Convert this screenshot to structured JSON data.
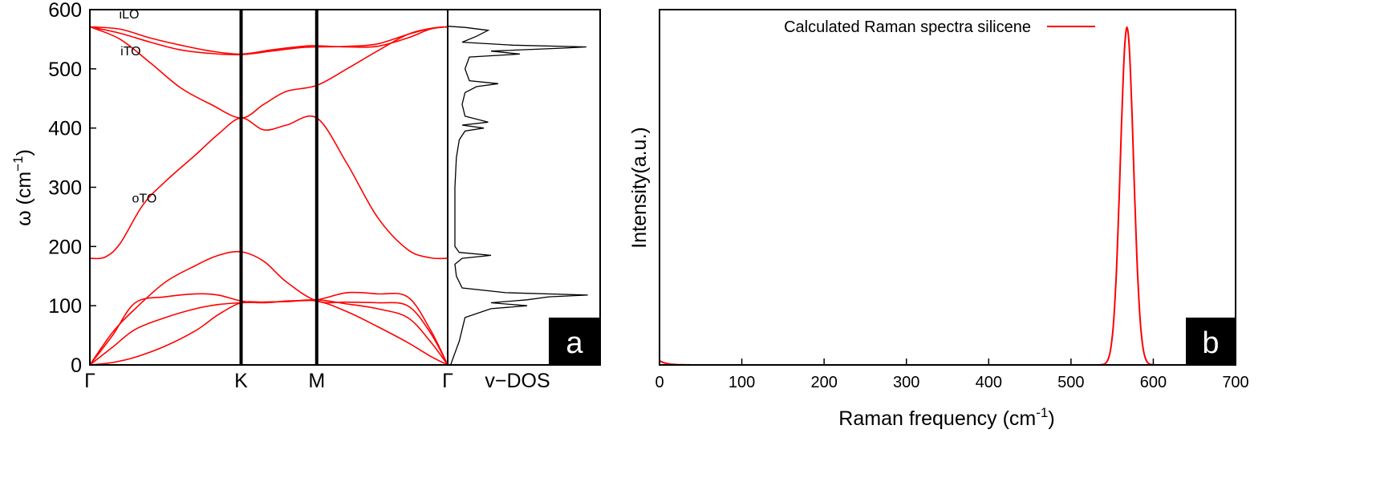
{
  "chart_data": [
    {
      "type": "line",
      "panel_label": "a",
      "ylabel_base": "ω (cm",
      "ylabel_sup": "−1",
      "ylabel_close": ")",
      "ylim": [
        0,
        600
      ],
      "yticks": [
        "0",
        "100",
        "200",
        "300",
        "400",
        "500",
        "600"
      ],
      "path_ticks": [
        {
          "label": "Γ",
          "k": 0
        },
        {
          "label": "K",
          "k": 1.0
        },
        {
          "label": "M",
          "k": 1.5
        },
        {
          "label": "Γ",
          "k": 2.366
        }
      ],
      "dos_label": "v−DOS",
      "annotations": [
        {
          "text": "iLO",
          "k": 0.26,
          "w": 585
        },
        {
          "text": "iTO",
          "k": 0.27,
          "w": 523
        },
        {
          "text": "oTO",
          "k": 0.36,
          "w": 274
        }
      ],
      "line_color": "#ff0000",
      "branches": [
        {
          "name": "",
          "k": [
            0,
            0.15,
            0.3,
            0.5,
            0.7,
            0.85,
            1.0,
            1.15,
            1.3,
            1.5,
            1.7,
            1.9,
            2.1,
            2.25,
            2.366
          ],
          "w": [
            0,
            4,
            13,
            32,
            58,
            85,
            105,
            106,
            107,
            108,
            90,
            65,
            38,
            15,
            0
          ]
        },
        {
          "name": "",
          "k": [
            0,
            0.15,
            0.3,
            0.5,
            0.7,
            0.85,
            1.0,
            1.15,
            1.3,
            1.5,
            1.7,
            1.9,
            2.1,
            2.25,
            2.366
          ],
          "w": [
            0,
            30,
            60,
            80,
            95,
            102,
            105,
            106,
            107,
            110,
            103,
            95,
            80,
            40,
            0
          ]
        },
        {
          "name": "",
          "k": [
            0,
            0.15,
            0.3,
            0.5,
            0.7,
            0.85,
            1.0,
            1.15,
            1.3,
            1.5,
            1.7,
            1.9,
            2.1,
            2.25,
            2.366
          ],
          "w": [
            0,
            50,
            105,
            115,
            120,
            118,
            108,
            105,
            108,
            110,
            122,
            120,
            115,
            60,
            0
          ]
        },
        {
          "name": "",
          "k": [
            0,
            0.15,
            0.3,
            0.5,
            0.7,
            0.85,
            1.0,
            1.15,
            1.3,
            1.5,
            1.7,
            1.9,
            2.1,
            2.25,
            2.366
          ],
          "w": [
            0,
            55,
            95,
            140,
            168,
            185,
            191,
            175,
            140,
            108,
            106,
            105,
            100,
            55,
            0
          ]
        },
        {
          "name": "",
          "k": [
            0,
            0.1,
            0.2,
            0.35,
            0.5,
            0.7,
            0.85,
            1.0,
            1.15,
            1.3,
            1.5,
            1.7,
            1.9,
            2.1,
            2.25,
            2.366
          ],
          "w": [
            180,
            182,
            205,
            270,
            310,
            355,
            390,
            417,
            397,
            405,
            417,
            340,
            250,
            195,
            181,
            180
          ]
        },
        {
          "name": "",
          "k": [
            0,
            0.2,
            0.4,
            0.6,
            0.8,
            1.0,
            1.15,
            1.3,
            1.5,
            1.7,
            1.9,
            2.1,
            2.25,
            2.366
          ],
          "w": [
            571,
            550,
            510,
            468,
            440,
            417,
            440,
            462,
            472,
            500,
            530,
            558,
            568,
            571
          ]
        },
        {
          "name": "",
          "k": [
            0,
            0.2,
            0.4,
            0.6,
            0.8,
            1.0,
            1.2,
            1.4,
            1.5,
            1.7,
            1.9,
            2.1,
            2.25,
            2.366
          ],
          "w": [
            571,
            560,
            545,
            532,
            526,
            524,
            530,
            536,
            537,
            538,
            542,
            558,
            568,
            571
          ]
        },
        {
          "name": "",
          "k": [
            0,
            0.2,
            0.4,
            0.6,
            0.8,
            1.0,
            1.2,
            1.4,
            1.5,
            1.7,
            1.9,
            2.1,
            2.25,
            2.366
          ],
          "w": [
            571,
            567,
            552,
            540,
            530,
            525,
            532,
            538,
            539,
            537,
            538,
            552,
            567,
            571
          ]
        }
      ],
      "dos": {
        "w": [
          0,
          20,
          40,
          60,
          80,
          95,
          100,
          105,
          110,
          115,
          118,
          122,
          130,
          150,
          170,
          180,
          185,
          190,
          200,
          250,
          300,
          350,
          380,
          395,
          400,
          405,
          410,
          420,
          440,
          460,
          470,
          475,
          480,
          500,
          520,
          525,
          530,
          535,
          537,
          540,
          545,
          555,
          565,
          570,
          572
        ],
        "val": [
          0.02,
          0.05,
          0.08,
          0.1,
          0.12,
          0.3,
          0.55,
          0.3,
          0.55,
          0.7,
          0.97,
          0.4,
          0.1,
          0.06,
          0.05,
          0.1,
          0.3,
          0.08,
          0.05,
          0.05,
          0.05,
          0.06,
          0.08,
          0.12,
          0.25,
          0.1,
          0.28,
          0.12,
          0.1,
          0.12,
          0.2,
          0.35,
          0.15,
          0.12,
          0.15,
          0.5,
          0.3,
          0.8,
          0.96,
          0.45,
          0.1,
          0.2,
          0.28,
          0.12,
          0.0
        ]
      }
    },
    {
      "type": "line",
      "panel_label": "b",
      "xlabel_base": "Raman frequency (cm",
      "xlabel_sup": "-1",
      "xlabel_close": ")",
      "ylabel": "Intensity(a.u.)",
      "xlim": [
        0,
        700
      ],
      "xticks": [
        "0",
        "100",
        "200",
        "300",
        "400",
        "500",
        "600",
        "700"
      ],
      "series": [
        {
          "name": "Calculated Raman spectra silicene",
          "color": "#ff0000",
          "peak_center": 568,
          "peak_sigma": 8,
          "peak_height": 0.95
        }
      ],
      "legend_position": "top-center"
    }
  ]
}
